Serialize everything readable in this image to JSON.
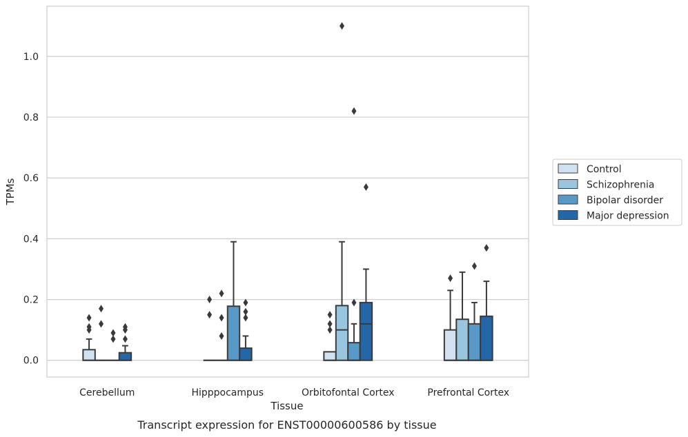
{
  "chart_data": {
    "type": "boxplot",
    "title": "",
    "caption": "Transcript expression for ENST00000600586 by tissue",
    "xlabel": "Tissue",
    "ylabel": "TPMs",
    "categories": [
      "Cerebellum",
      "Hipppocampus",
      "Orbitofontal Cortex",
      "Prefrontal Cortex"
    ],
    "ylim": [
      -0.055,
      1.165
    ],
    "yticks": [
      "0.0",
      "0.2",
      "0.4",
      "0.6",
      "0.8",
      "1.0"
    ],
    "grid": true,
    "legend_position": "right",
    "series": [
      {
        "name": "Control",
        "color": "#d1e1f1",
        "boxes": [
          {
            "q1": 0.0,
            "median": 0.0,
            "q3": 0.035,
            "whisker_low": 0.0,
            "whisker_high": 0.07,
            "outliers": [
              0.1,
              0.11,
              0.14
            ]
          },
          {
            "q1": 0.0,
            "median": 0.0,
            "q3": 0.0,
            "whisker_low": 0.0,
            "whisker_high": 0.0,
            "outliers": [
              0.15,
              0.2
            ]
          },
          {
            "q1": 0.0,
            "median": 0.0,
            "q3": 0.028,
            "whisker_low": 0.0,
            "whisker_high": 0.028,
            "outliers": [
              0.1,
              0.12,
              0.15
            ]
          },
          {
            "q1": 0.0,
            "median": 0.0,
            "q3": 0.1,
            "whisker_low": 0.0,
            "whisker_high": 0.23,
            "outliers": [
              0.27
            ]
          }
        ]
      },
      {
        "name": "Schizophrenia",
        "color": "#9ac5de",
        "boxes": [
          {
            "q1": 0.0,
            "median": 0.0,
            "q3": 0.0,
            "whisker_low": 0.0,
            "whisker_high": 0.0,
            "outliers": [
              0.12,
              0.17
            ]
          },
          {
            "q1": 0.0,
            "median": 0.0,
            "q3": 0.0,
            "whisker_low": 0.0,
            "whisker_high": 0.0,
            "outliers": [
              0.08,
              0.14,
              0.22
            ]
          },
          {
            "q1": 0.0,
            "median": 0.1,
            "q3": 0.18,
            "whisker_low": 0.0,
            "whisker_high": 0.39,
            "outliers": [
              1.1
            ]
          },
          {
            "q1": 0.0,
            "median": 0.0,
            "q3": 0.135,
            "whisker_low": 0.0,
            "whisker_high": 0.29,
            "outliers": []
          }
        ]
      },
      {
        "name": "Bipolar disorder",
        "color": "#5799c7",
        "boxes": [
          {
            "q1": 0.0,
            "median": 0.0,
            "q3": 0.0,
            "whisker_low": 0.0,
            "whisker_high": 0.0,
            "outliers": [
              0.07,
              0.09
            ]
          },
          {
            "q1": 0.0,
            "median": 0.0,
            "q3": 0.178,
            "whisker_low": 0.0,
            "whisker_high": 0.39,
            "outliers": []
          },
          {
            "q1": 0.0,
            "median": 0.0,
            "q3": 0.058,
            "whisker_low": 0.0,
            "whisker_high": 0.12,
            "outliers": [
              0.19,
              0.82
            ]
          },
          {
            "q1": 0.0,
            "median": 0.0,
            "q3": 0.12,
            "whisker_low": 0.0,
            "whisker_high": 0.19,
            "outliers": [
              0.31
            ]
          }
        ]
      },
      {
        "name": "Major depression",
        "color": "#2467a8",
        "boxes": [
          {
            "q1": 0.0,
            "median": 0.0,
            "q3": 0.025,
            "whisker_low": 0.0,
            "whisker_high": 0.048,
            "outliers": [
              0.07,
              0.1,
              0.11
            ]
          },
          {
            "q1": 0.0,
            "median": 0.0,
            "q3": 0.04,
            "whisker_low": 0.0,
            "whisker_high": 0.08,
            "outliers": [
              0.14,
              0.16,
              0.19
            ]
          },
          {
            "q1": 0.0,
            "median": 0.12,
            "q3": 0.19,
            "whisker_low": 0.0,
            "whisker_high": 0.3,
            "outliers": [
              0.57
            ]
          },
          {
            "q1": 0.0,
            "median": 0.0,
            "q3": 0.145,
            "whisker_low": 0.0,
            "whisker_high": 0.26,
            "outliers": [
              0.37
            ]
          }
        ]
      }
    ]
  }
}
